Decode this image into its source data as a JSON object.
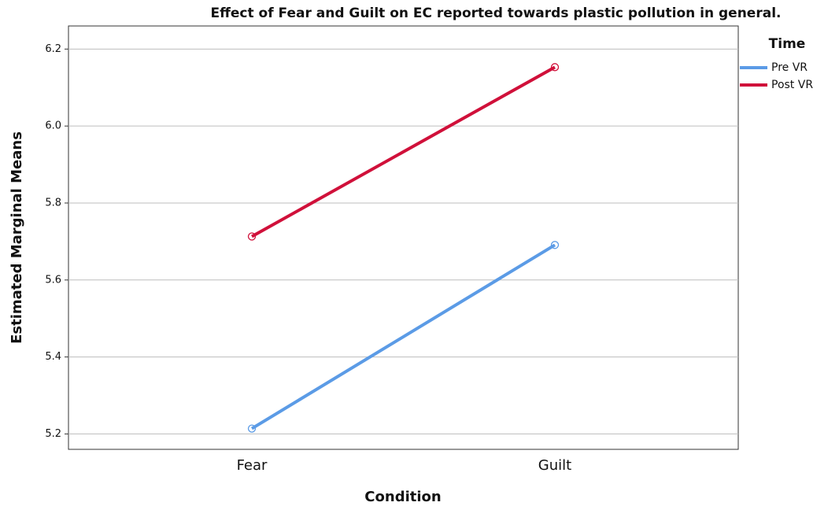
{
  "chart_data": {
    "type": "line",
    "title": "Effect of Fear and Guilt on EC reported towards plastic pollution in general.",
    "x_label": "Condition",
    "y_label": "Estimated Marginal Means",
    "legend_title": "Time",
    "legend": "right",
    "grid": true,
    "categories": [
      "Fear",
      "Guilt"
    ],
    "series": [
      {
        "name": "Pre VR",
        "color": "#5b9be6",
        "values": [
          5.214,
          5.691
        ]
      },
      {
        "name": "Post VR",
        "color": "#d0103a",
        "values": [
          5.713,
          6.153
        ]
      }
    ],
    "ylim": [
      5.16,
      6.26
    ],
    "yticks": [
      5.2,
      5.4,
      5.6,
      5.8,
      {
        "value": 6,
        "label": "6.0"
      },
      6.2
    ]
  }
}
